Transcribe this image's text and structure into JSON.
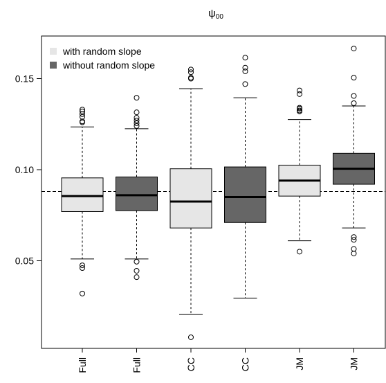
{
  "chart_data": {
    "type": "boxplot",
    "title": "ψ00",
    "title_parts": {
      "symbol": "ψ",
      "subscript": "00"
    },
    "xlabel": "",
    "ylabel": "",
    "ylim": [
      0.0,
      0.17
    ],
    "yticks": [
      0.05,
      0.1,
      0.15
    ],
    "ytick_labels": [
      "0.05",
      "0.10",
      "0.15"
    ],
    "reference_line": 0.088,
    "legend": {
      "placement": "top-left",
      "entries": [
        {
          "label": "with random slope",
          "color": "#e6e6e6"
        },
        {
          "label": "without random slope",
          "color": "#666666"
        }
      ]
    },
    "categories": [
      "Full",
      "Full",
      "CC",
      "CC",
      "JM",
      "JM"
    ],
    "boxes": [
      {
        "label": "Full",
        "group": "with random slope",
        "whisker_low": 0.051,
        "q1": 0.077,
        "median": 0.0855,
        "q3": 0.0955,
        "whisker_high": 0.1235,
        "outliers": [
          0.032,
          0.046,
          0.0475,
          0.126,
          0.1265,
          0.129,
          0.1305,
          0.132,
          0.133
        ]
      },
      {
        "label": "Full",
        "group": "without random slope",
        "whisker_low": 0.051,
        "q1": 0.0775,
        "median": 0.086,
        "q3": 0.096,
        "whisker_high": 0.1225,
        "outliers": [
          0.041,
          0.0445,
          0.0495,
          0.124,
          0.1255,
          0.127,
          0.1285,
          0.1315,
          0.1395
        ]
      },
      {
        "label": "CC",
        "group": "with random slope",
        "whisker_low": 0.0205,
        "q1": 0.068,
        "median": 0.0825,
        "q3": 0.1005,
        "whisker_high": 0.1445,
        "outliers": [
          0.008,
          0.15,
          0.1505,
          0.1535,
          0.155
        ]
      },
      {
        "label": "CC",
        "group": "without random slope",
        "whisker_low": 0.0295,
        "q1": 0.071,
        "median": 0.085,
        "q3": 0.1015,
        "whisker_high": 0.1395,
        "outliers": [
          0.147,
          0.154,
          0.156,
          0.1615
        ]
      },
      {
        "label": "JM",
        "group": "with random slope",
        "whisker_low": 0.061,
        "q1": 0.0855,
        "median": 0.094,
        "q3": 0.1025,
        "whisker_high": 0.1275,
        "outliers": [
          0.055,
          0.132,
          0.1325,
          0.1335,
          0.134,
          0.1415,
          0.1435
        ]
      },
      {
        "label": "JM",
        "group": "without random slope",
        "whisker_low": 0.068,
        "q1": 0.092,
        "median": 0.1005,
        "q3": 0.109,
        "whisker_high": 0.135,
        "outliers": [
          0.054,
          0.0565,
          0.0615,
          0.063,
          0.1365,
          0.1405,
          0.1505,
          0.1665
        ]
      }
    ]
  }
}
